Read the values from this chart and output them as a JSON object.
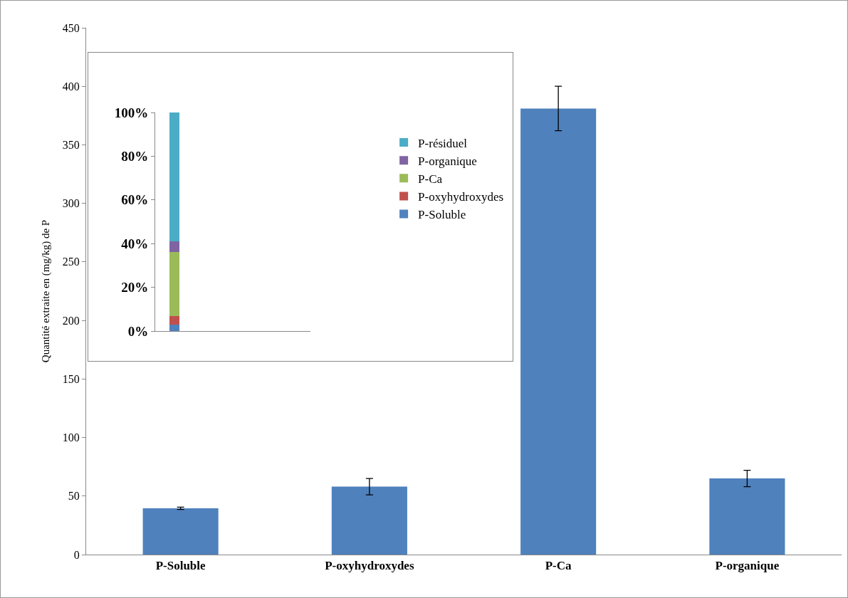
{
  "chart_data": [
    {
      "type": "bar",
      "categories": [
        "P-Soluble",
        "P-oxyhydroxydes",
        "P-Ca",
        "P-organique"
      ],
      "values": [
        39.5,
        58,
        381,
        65
      ],
      "errors": [
        1,
        7,
        19,
        7
      ],
      "color": "#4f81bd",
      "ylabel": "Quantité extraite en (mg/kg) de P",
      "ylim": [
        0,
        450
      ],
      "yticks": [
        0,
        50,
        100,
        150,
        200,
        250,
        300,
        350,
        400,
        450
      ],
      "grid": false,
      "legend": false
    },
    {
      "type": "bar",
      "stacked": true,
      "categories": [
        null
      ],
      "series": [
        {
          "name": "P-Soluble",
          "color": "#4f81bd",
          "values": [
            3
          ]
        },
        {
          "name": "P-oxyhydroxydes",
          "color": "#c0504d",
          "values": [
            4
          ]
        },
        {
          "name": "P-Ca",
          "color": "#9bbb59",
          "values": [
            29
          ]
        },
        {
          "name": "P-organique",
          "color": "#8064a2",
          "values": [
            5
          ]
        },
        {
          "name": "P-résiduel",
          "color": "#4bacc6",
          "values": [
            59
          ]
        }
      ],
      "ylim": [
        0,
        100
      ],
      "yticks": [
        {
          "value": 0,
          "label": "0%"
        },
        {
          "value": 20,
          "label": "20%"
        },
        {
          "value": 40,
          "label": "40%"
        },
        {
          "value": 60,
          "label": "60%"
        },
        {
          "value": 80,
          "label": "80%"
        },
        {
          "value": 100,
          "label": "100%"
        }
      ],
      "grid": false,
      "legend": "right"
    }
  ]
}
